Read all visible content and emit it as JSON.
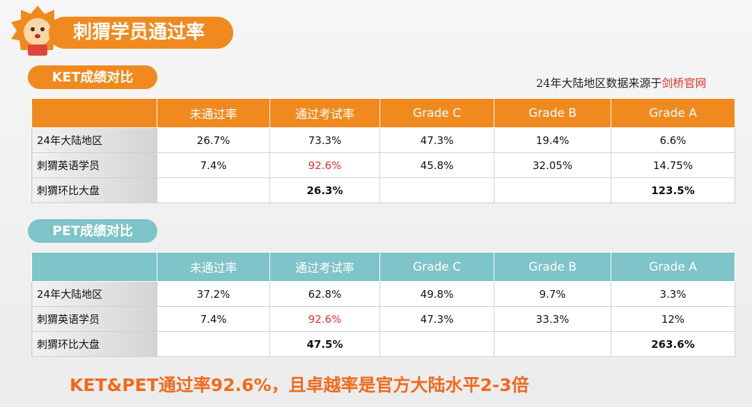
{
  "header": {
    "title": "刺猬学员通过率",
    "source_prefix": "24年大陆地区数据来源于",
    "source_link": "剑桥官网"
  },
  "tables": [
    {
      "title": "KET成绩对比",
      "columns": [
        "未通过率",
        "通过考试率",
        "Grade C",
        "Grade B",
        "Grade A"
      ],
      "rows": [
        {
          "label": "24年大陆地区",
          "cells": [
            "26.7%",
            "73.3%",
            "47.3%",
            "19.4%",
            "6.6%"
          ]
        },
        {
          "label": "刺猬英语学员",
          "cells": [
            "7.4%",
            "92.6%",
            "45.8%",
            "32.05%",
            "14.75%"
          ]
        },
        {
          "label": "刺猬环比大盘",
          "cells": [
            null,
            "26.3%",
            null,
            null,
            "123.5%"
          ]
        }
      ]
    },
    {
      "title": "PET成绩对比",
      "columns": [
        "未通过率",
        "通过考试率",
        "Grade C",
        "Grade B",
        "Grade A"
      ],
      "rows": [
        {
          "label": "24年大陆地区",
          "cells": [
            "37.2%",
            "62.8%",
            "49.8%",
            "9.7%",
            "3.3%"
          ]
        },
        {
          "label": "刺猬英语学员",
          "cells": [
            "7.4%",
            "92.6%",
            "47.3%",
            "33.3%",
            "12%"
          ]
        },
        {
          "label": "刺猬环比大盘",
          "cells": [
            null,
            "47.5%",
            null,
            null,
            "263.6%"
          ]
        }
      ]
    }
  ],
  "footer": {
    "summary": "KET&PET通过率92.6%，且卓越率是官方大陆水平2-3倍"
  }
}
